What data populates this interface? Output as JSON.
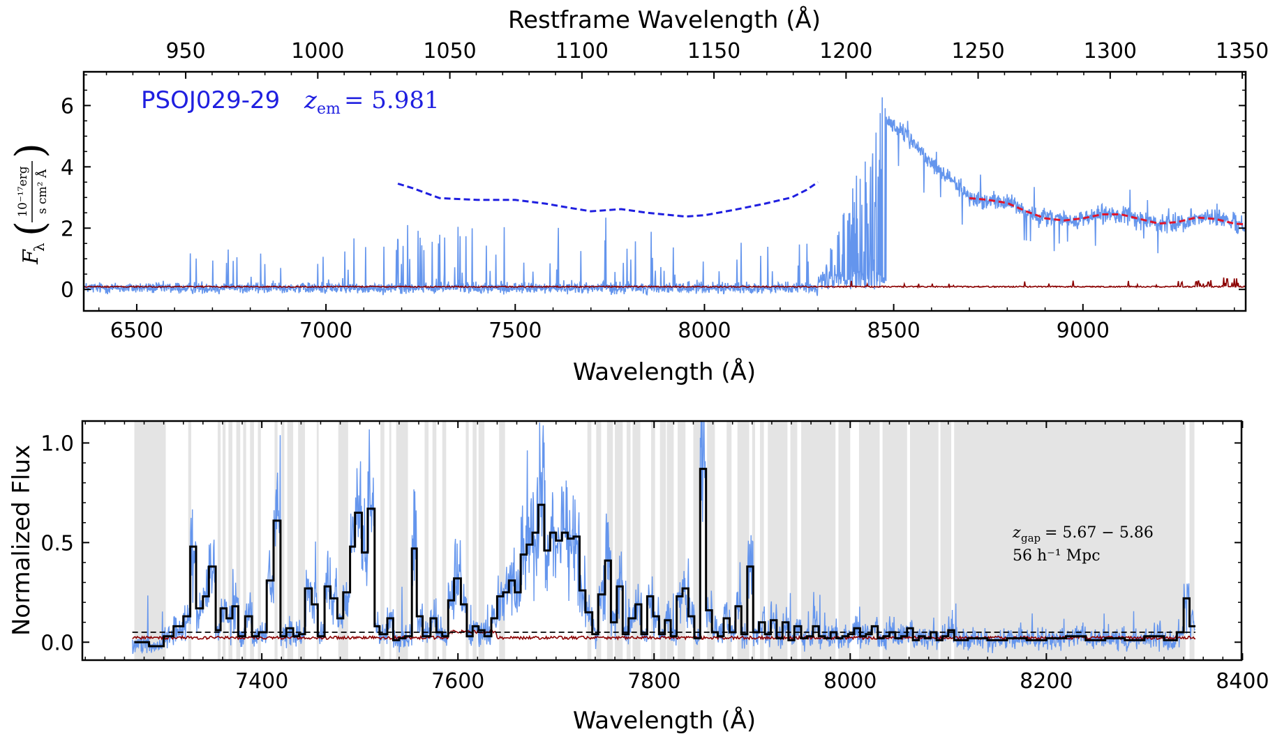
{
  "chart_data": [
    {
      "type": "line",
      "name_label": "PSOJ029-29",
      "redshift_label": "z_em = 5.981",
      "redshift_symbol": "z",
      "redshift_sub": "em",
      "redshift_value": "= 5.981",
      "xlabel": "Wavelength (Å)",
      "x2label": "Restframe Wavelength (Å)",
      "ylabel_symbol": "F",
      "ylabel_sub": "λ",
      "ylabel_units_num": "10⁻¹⁷erg",
      "ylabel_units_den": "s cm² Å",
      "xlim": [
        6360,
        9430
      ],
      "ylim": [
        -0.7,
        7.1
      ],
      "x2lim": [
        911.4,
        1351.3
      ],
      "xticks": [
        6500,
        7000,
        7500,
        8000,
        8500,
        9000
      ],
      "yticks": [
        0,
        2,
        4,
        6
      ],
      "x2ticks": [
        950,
        1000,
        1050,
        1100,
        1150,
        1200,
        1250,
        1300,
        1350
      ],
      "colors": {
        "flux": "#6495ed",
        "error": "#8b0000",
        "continuum_red": "#e0142a",
        "continuum_blue": "#1f1fe0",
        "label": "#1f1fe0"
      },
      "series": [
        {
          "kind": "blue-dashed-continuum",
          "x": [
            7190,
            7230,
            7300,
            7400,
            7500,
            7580,
            7650,
            7700,
            7780,
            7850,
            7950,
            8000,
            8080,
            8160,
            8230,
            8270,
            8300
          ],
          "y": [
            3.45,
            3.3,
            2.98,
            2.92,
            2.92,
            2.8,
            2.65,
            2.55,
            2.62,
            2.5,
            2.38,
            2.42,
            2.6,
            2.8,
            3.0,
            3.25,
            3.5
          ]
        },
        {
          "kind": "red-dashed-continuum",
          "x": [
            8700,
            8750,
            8800,
            8850,
            8900,
            8950,
            9000,
            9050,
            9100,
            9150,
            9200,
            9250,
            9300,
            9350,
            9400,
            9430
          ],
          "y": [
            2.98,
            2.92,
            2.82,
            2.55,
            2.32,
            2.25,
            2.32,
            2.45,
            2.45,
            2.3,
            2.15,
            2.2,
            2.35,
            2.3,
            2.15,
            2.12
          ]
        }
      ]
    },
    {
      "type": "line",
      "xlabel": "Wavelength (Å)",
      "ylabel": "Normalized Flux",
      "xlim": [
        7217,
        8399
      ],
      "ylim": [
        -0.09,
        1.11
      ],
      "xticks": [
        7400,
        7600,
        7800,
        8000,
        8200,
        8400
      ],
      "yticks": [
        "0.0",
        "0.5",
        "1.0"
      ],
      "annotation_line1_symbol": "z",
      "annotation_line1_sub": "gap",
      "annotation_line1_value": "= 5.67 − 5.86",
      "annotation_line2": "56 h⁻¹ Mpc",
      "threshold_level": 0.05,
      "colors": {
        "flux": "#6495ed",
        "binned": "#000000",
        "error": "#8b0000",
        "gap": "#e4e4e4"
      },
      "gap_regions": [
        [
          7270,
          7302
        ],
        [
          7325,
          7328
        ],
        [
          7355,
          7358
        ],
        [
          7360,
          7363
        ],
        [
          7366,
          7370
        ],
        [
          7374,
          7378
        ],
        [
          7381,
          7384
        ],
        [
          7388,
          7392
        ],
        [
          7396,
          7399
        ],
        [
          7413,
          7416
        ],
        [
          7420,
          7423
        ],
        [
          7426,
          7432
        ],
        [
          7437,
          7444
        ],
        [
          7456,
          7458
        ],
        [
          7478,
          7488
        ],
        [
          7521,
          7525
        ],
        [
          7530,
          7532
        ],
        [
          7537,
          7549
        ],
        [
          7566,
          7570
        ],
        [
          7574,
          7578
        ],
        [
          7584,
          7588
        ],
        [
          7608,
          7611
        ],
        [
          7615,
          7619
        ],
        [
          7621,
          7627
        ],
        [
          7642,
          7648
        ],
        [
          7732,
          7736
        ],
        [
          7741,
          7746
        ],
        [
          7752,
          7758
        ],
        [
          7760,
          7768
        ],
        [
          7772,
          7776
        ],
        [
          7778,
          7786
        ],
        [
          7797,
          7801
        ],
        [
          7806,
          7812
        ],
        [
          7813,
          7820
        ],
        [
          7824,
          7832
        ],
        [
          7840,
          7847
        ],
        [
          7854,
          7862
        ],
        [
          7874,
          7879
        ],
        [
          7885,
          7897
        ],
        [
          7900,
          7903
        ],
        [
          7908,
          7912
        ],
        [
          7916,
          7936
        ],
        [
          7939,
          7946
        ],
        [
          7950,
          7985
        ],
        [
          7988,
          8000
        ],
        [
          8009,
          8030
        ],
        [
          8033,
          8058
        ],
        [
          8061,
          8090
        ],
        [
          8092,
          8103
        ],
        [
          8106,
          8342
        ],
        [
          8346,
          8351
        ]
      ],
      "binned_steps": [
        [
          7270,
          0.0
        ],
        [
          7285,
          -0.02
        ],
        [
          7300,
          0.03
        ],
        [
          7310,
          0.08
        ],
        [
          7320,
          0.13
        ],
        [
          7327,
          0.48
        ],
        [
          7333,
          0.17
        ],
        [
          7340,
          0.23
        ],
        [
          7346,
          0.38
        ],
        [
          7353,
          0.06
        ],
        [
          7358,
          0.17
        ],
        [
          7364,
          0.12
        ],
        [
          7370,
          0.18
        ],
        [
          7376,
          0.03
        ],
        [
          7383,
          0.13
        ],
        [
          7390,
          0.03
        ],
        [
          7397,
          0.05
        ],
        [
          7405,
          0.31
        ],
        [
          7412,
          0.61
        ],
        [
          7419,
          0.03
        ],
        [
          7425,
          0.07
        ],
        [
          7432,
          0.03
        ],
        [
          7438,
          0.04
        ],
        [
          7444,
          0.27
        ],
        [
          7451,
          0.19
        ],
        [
          7457,
          0.03
        ],
        [
          7464,
          0.28
        ],
        [
          7470,
          0.22
        ],
        [
          7477,
          0.12
        ],
        [
          7483,
          0.25
        ],
        [
          7490,
          0.48
        ],
        [
          7495,
          0.65
        ],
        [
          7502,
          0.45
        ],
        [
          7508,
          0.67
        ],
        [
          7515,
          0.08
        ],
        [
          7520,
          0.04
        ],
        [
          7528,
          0.12
        ],
        [
          7534,
          0.01
        ],
        [
          7540,
          0.02
        ],
        [
          7546,
          0.03
        ],
        [
          7553,
          0.47
        ],
        [
          7558,
          0.13
        ],
        [
          7564,
          0.03
        ],
        [
          7572,
          0.12
        ],
        [
          7578,
          0.05
        ],
        [
          7584,
          0.03
        ],
        [
          7590,
          0.21
        ],
        [
          7596,
          0.32
        ],
        [
          7603,
          0.19
        ],
        [
          7609,
          0.03
        ],
        [
          7615,
          0.08
        ],
        [
          7621,
          0.06
        ],
        [
          7627,
          0.03
        ],
        [
          7634,
          0.12
        ],
        [
          7640,
          0.23
        ],
        [
          7646,
          0.25
        ],
        [
          7652,
          0.31
        ],
        [
          7658,
          0.25
        ],
        [
          7664,
          0.44
        ],
        [
          7670,
          0.49
        ],
        [
          7676,
          0.55
        ],
        [
          7682,
          0.69
        ],
        [
          7688,
          0.46
        ],
        [
          7694,
          0.55
        ],
        [
          7700,
          0.51
        ],
        [
          7706,
          0.55
        ],
        [
          7712,
          0.52
        ],
        [
          7718,
          0.53
        ],
        [
          7724,
          0.26
        ],
        [
          7730,
          0.15
        ],
        [
          7737,
          0.04
        ],
        [
          7743,
          0.24
        ],
        [
          7750,
          0.41
        ],
        [
          7756,
          0.1
        ],
        [
          7762,
          0.28
        ],
        [
          7768,
          0.04
        ],
        [
          7774,
          0.12
        ],
        [
          7781,
          0.19
        ],
        [
          7787,
          0.04
        ],
        [
          7793,
          0.23
        ],
        [
          7799,
          0.13
        ],
        [
          7805,
          0.04
        ],
        [
          7811,
          0.11
        ],
        [
          7817,
          0.03
        ],
        [
          7823,
          0.23
        ],
        [
          7829,
          0.27
        ],
        [
          7835,
          0.13
        ],
        [
          7841,
          0.02
        ],
        [
          7847,
          0.87
        ],
        [
          7853,
          0.16
        ],
        [
          7859,
          0.05
        ],
        [
          7865,
          0.03
        ],
        [
          7871,
          0.12
        ],
        [
          7877,
          0.05
        ],
        [
          7883,
          0.18
        ],
        [
          7889,
          0.04
        ],
        [
          7895,
          0.38
        ],
        [
          7901,
          0.05
        ],
        [
          7907,
          0.1
        ],
        [
          7913,
          0.04
        ],
        [
          7919,
          0.11
        ],
        [
          7925,
          0.02
        ],
        [
          7931,
          0.1
        ],
        [
          7937,
          0.01
        ],
        [
          7943,
          0.08
        ],
        [
          7950,
          0.02
        ],
        [
          7956,
          0.03
        ],
        [
          7962,
          0.08
        ],
        [
          7968,
          0.03
        ],
        [
          7974,
          0.02
        ],
        [
          7980,
          0.05
        ],
        [
          7986,
          0.02
        ],
        [
          7992,
          0.03
        ],
        [
          7998,
          0.04
        ],
        [
          8004,
          0.07
        ],
        [
          8010,
          0.03
        ],
        [
          8016,
          0.04
        ],
        [
          8022,
          0.08
        ],
        [
          8028,
          0.02
        ],
        [
          8034,
          0.03
        ],
        [
          8040,
          0.05
        ],
        [
          8046,
          0.02
        ],
        [
          8052,
          0.03
        ],
        [
          8058,
          0.07
        ],
        [
          8064,
          0.01
        ],
        [
          8070,
          0.03
        ],
        [
          8076,
          0.02
        ],
        [
          8082,
          0.05
        ],
        [
          8088,
          0.01
        ],
        [
          8094,
          0.03
        ],
        [
          8100,
          0.06
        ],
        [
          8106,
          0.01
        ],
        [
          8120,
          0.02
        ],
        [
          8140,
          0.01
        ],
        [
          8160,
          0.02
        ],
        [
          8180,
          0.01
        ],
        [
          8200,
          0.02
        ],
        [
          8220,
          0.03
        ],
        [
          8240,
          0.01
        ],
        [
          8260,
          0.02
        ],
        [
          8280,
          0.01
        ],
        [
          8300,
          0.03
        ],
        [
          8320,
          0.01
        ],
        [
          8333,
          0.05
        ],
        [
          8340,
          0.22
        ],
        [
          8346,
          0.08
        ],
        [
          8350,
          0.08
        ]
      ]
    }
  ]
}
